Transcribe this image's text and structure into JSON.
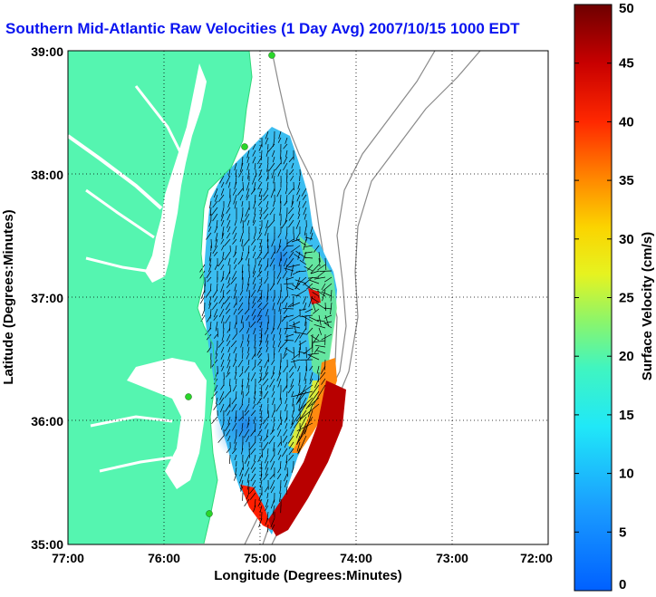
{
  "title": "Southern Mid-Atlantic Raw Velocities (1 Day Avg) 2007/10/15 1000 EDT",
  "x_axis": {
    "label": "Longitude (Degrees:Minutes)",
    "ticks": [
      "77:00",
      "76:00",
      "75:00",
      "74:00",
      "73:00",
      "72:00"
    ]
  },
  "y_axis": {
    "label": "Latitude (Degrees:Minutes)",
    "ticks": [
      "39:00",
      "38:00",
      "37:00",
      "36:00",
      "35:00"
    ]
  },
  "colorbar": {
    "label": "Surface Velocity (cm/s)",
    "ticks": [
      "0",
      "5",
      "10",
      "15",
      "20",
      "25",
      "30",
      "35",
      "40",
      "45",
      "50"
    ],
    "min": 0,
    "max": 50,
    "colormap": "jet"
  },
  "map_extent": {
    "lon": [
      -77,
      -72
    ],
    "lat": [
      35,
      39
    ]
  },
  "colors": {
    "land": "#55f5b0",
    "title": "#0a14f0",
    "contour": "#8a8a8a",
    "station": "#2ad62a",
    "water": "#ffffff"
  }
}
